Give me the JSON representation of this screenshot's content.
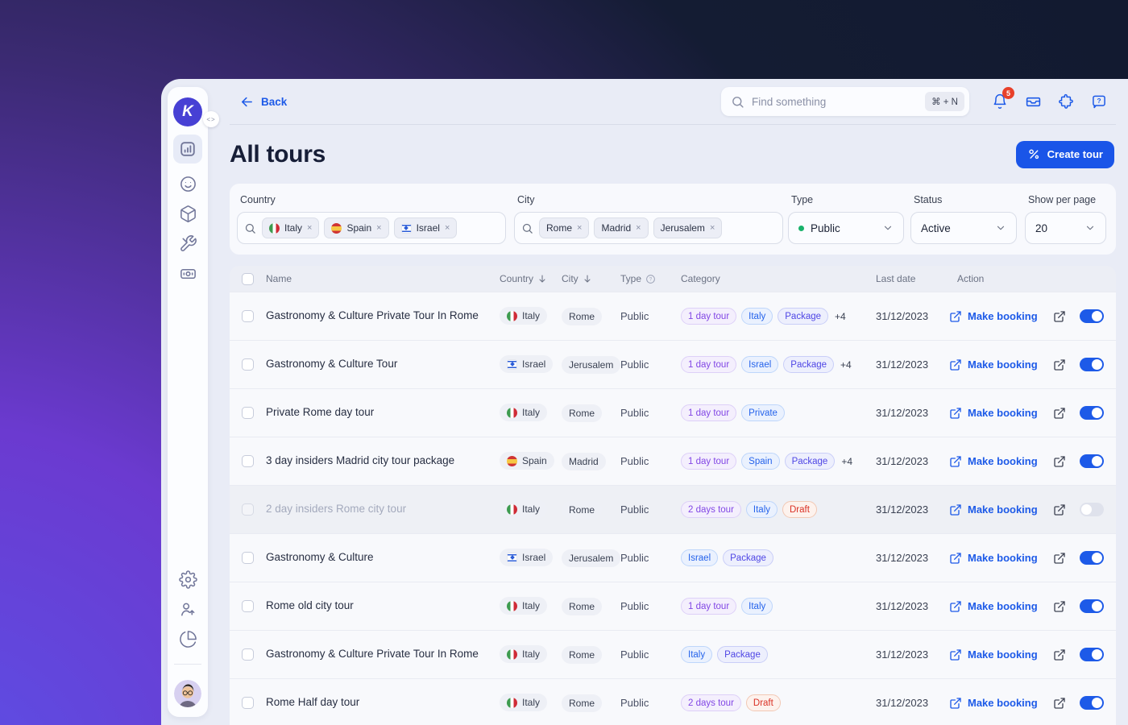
{
  "colors": {
    "accent_blue": "#1d5ae8",
    "brand_logo": "#4740d4",
    "badge_red": "#e8402a",
    "status_green_dot": "#18b26b",
    "bg_gradient_top": "#121a30",
    "bg_gradient_bottom_left": "#5b50e6",
    "window_bg": "#e9ecf6"
  },
  "sidebar": {
    "logo_letter": "K",
    "collapse_icon": "<>",
    "nav_icons": [
      "analytics-icon",
      "mood-icon",
      "products-icon",
      "tools-icon",
      "payouts-icon"
    ],
    "bottom_icons": [
      "settings-icon",
      "invite-user-icon",
      "reports-icon"
    ],
    "avatar": "user-avatar"
  },
  "topbar": {
    "back_label": "Back",
    "search": {
      "placeholder": "Find something",
      "shortcut": "⌘ + N"
    },
    "notification_count": "5",
    "icons": [
      "bell-icon",
      "inbox-icon",
      "puzzle-icon",
      "help-icon"
    ]
  },
  "page": {
    "title": "All tours",
    "create_button_label": "Create tour"
  },
  "filters": {
    "country": {
      "label": "Country",
      "tags": [
        {
          "label": "Italy",
          "flag": "italy"
        },
        {
          "label": "Spain",
          "flag": "spain"
        },
        {
          "label": "Israel",
          "flag": "israel"
        }
      ]
    },
    "city": {
      "label": "City",
      "tags": [
        {
          "label": "Rome"
        },
        {
          "label": "Madrid"
        },
        {
          "label": "Jerusalem"
        }
      ]
    },
    "type": {
      "label": "Type",
      "value": "Public"
    },
    "status": {
      "label": "Status",
      "value": "Active"
    },
    "per_page": {
      "label": "Show per page",
      "value": "20"
    }
  },
  "table": {
    "headers": {
      "name": "Name",
      "country": "Country",
      "city": "City",
      "type": "Type",
      "category": "Category",
      "last_date": "Last date",
      "action": "Action"
    },
    "make_booking_label": "Make booking",
    "rows": [
      {
        "name": "Gastronomy & Culture Private Tour In Rome",
        "country": "Italy",
        "flag": "italy",
        "city": "Rome",
        "type": "Public",
        "tags": [
          {
            "label": "1 day tour",
            "kind": "duration"
          },
          {
            "label": "Italy",
            "kind": "place"
          },
          {
            "label": "Package",
            "kind": "package"
          }
        ],
        "extra": "+4",
        "last_date": "31/12/2023",
        "toggle_on": true,
        "disabled": false
      },
      {
        "name": "Gastronomy & Culture Tour",
        "country": "Israel",
        "flag": "israel",
        "city": "Jerusalem",
        "type": "Public",
        "tags": [
          {
            "label": "1 day tour",
            "kind": "duration"
          },
          {
            "label": "Israel",
            "kind": "place"
          },
          {
            "label": "Package",
            "kind": "package"
          }
        ],
        "extra": "+4",
        "last_date": "31/12/2023",
        "toggle_on": true,
        "disabled": false
      },
      {
        "name": "Private Rome day tour",
        "country": "Italy",
        "flag": "italy",
        "city": "Rome",
        "type": "Public",
        "tags": [
          {
            "label": "1 day tour",
            "kind": "duration"
          },
          {
            "label": "Private",
            "kind": "place"
          }
        ],
        "extra": null,
        "last_date": "31/12/2023",
        "toggle_on": true,
        "disabled": false
      },
      {
        "name": "3 day insiders Madrid city tour package",
        "country": "Spain",
        "flag": "spain",
        "city": "Madrid",
        "type": "Public",
        "tags": [
          {
            "label": "1 day tour",
            "kind": "duration"
          },
          {
            "label": "Spain",
            "kind": "place"
          },
          {
            "label": "Package",
            "kind": "package"
          }
        ],
        "extra": "+4",
        "last_date": "31/12/2023",
        "toggle_on": true,
        "disabled": false
      },
      {
        "name": "2 day insiders Rome city tour",
        "country": "Italy",
        "flag": "italy",
        "city": "Rome",
        "type": "Public",
        "tags": [
          {
            "label": "2 days tour",
            "kind": "duration"
          },
          {
            "label": "Italy",
            "kind": "place"
          },
          {
            "label": "Draft",
            "kind": "draft"
          }
        ],
        "extra": null,
        "last_date": "31/12/2023",
        "toggle_on": false,
        "disabled": true
      },
      {
        "name": "Gastronomy & Culture",
        "country": "Israel",
        "flag": "israel",
        "city": "Jerusalem",
        "type": "Public",
        "tags": [
          {
            "label": "Israel",
            "kind": "place"
          },
          {
            "label": "Package",
            "kind": "package"
          }
        ],
        "extra": null,
        "last_date": "31/12/2023",
        "toggle_on": true,
        "disabled": false
      },
      {
        "name": "Rome old city tour",
        "country": "Italy",
        "flag": "italy",
        "city": "Rome",
        "type": "Public",
        "tags": [
          {
            "label": "1 day tour",
            "kind": "duration"
          },
          {
            "label": "Italy",
            "kind": "place"
          }
        ],
        "extra": null,
        "last_date": "31/12/2023",
        "toggle_on": true,
        "disabled": false
      },
      {
        "name": "Gastronomy & Culture Private Tour In Rome",
        "country": "Italy",
        "flag": "italy",
        "city": "Rome",
        "type": "Public",
        "tags": [
          {
            "label": "Italy",
            "kind": "place"
          },
          {
            "label": "Package",
            "kind": "package"
          }
        ],
        "extra": null,
        "last_date": "31/12/2023",
        "toggle_on": true,
        "disabled": false
      },
      {
        "name": "Rome Half day tour",
        "country": "Italy",
        "flag": "italy",
        "city": "Rome",
        "type": "Public",
        "tags": [
          {
            "label": "2 days tour",
            "kind": "duration"
          },
          {
            "label": "Draft",
            "kind": "draft"
          }
        ],
        "extra": null,
        "last_date": "31/12/2023",
        "toggle_on": true,
        "disabled": false
      }
    ]
  }
}
